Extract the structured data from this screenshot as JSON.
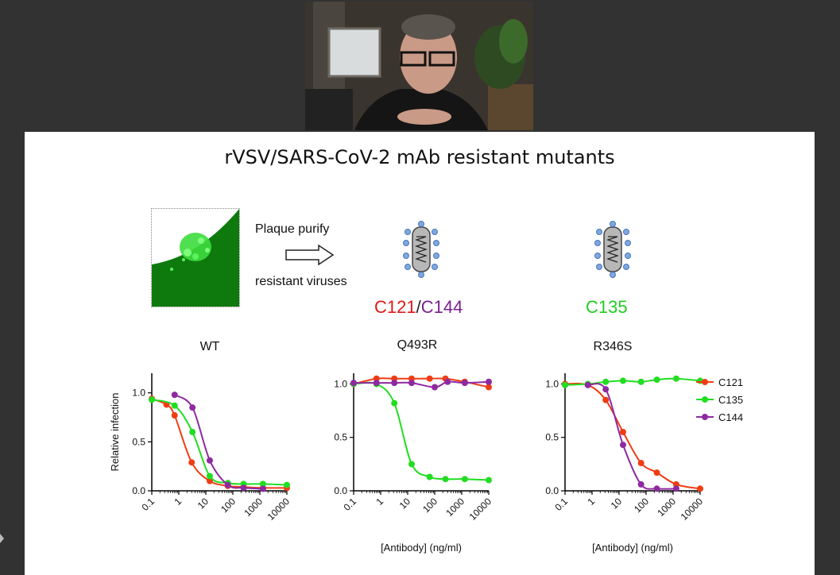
{
  "slide": {
    "title": "rVSV/SARS-CoV-2 mAb resistant mutants",
    "flow_top": "Plaque purify",
    "flow_bottom": "resistant viruses",
    "virus1_label_a": "C121",
    "virus1_sep": "/",
    "virus1_label_b": "C144",
    "virus2_label": "C135"
  },
  "colors": {
    "C121": "#f03c14",
    "C135": "#22dd22",
    "C144": "#8e2aa0",
    "virus_blue": "#7ea8e0"
  },
  "chart_data": [
    {
      "type": "line",
      "title": "WT",
      "ylabel": "Relative infection",
      "xlabel": "",
      "xscale": "log",
      "xlim": [
        0.1,
        10000
      ],
      "ylim": [
        0,
        1.2
      ],
      "xticks": [
        "0.1",
        "1",
        "10",
        "100",
        "1000",
        "10000"
      ],
      "yticks": [
        "0.0",
        "0.5",
        "1.0"
      ],
      "series": [
        {
          "name": "C121",
          "x": [
            0.1,
            0.35,
            0.7,
            3,
            14,
            65,
            250,
            1300,
            10000
          ],
          "y": [
            0.94,
            0.88,
            0.77,
            0.29,
            0.1,
            0.05,
            0.04,
            0.03,
            0.03
          ]
        },
        {
          "name": "C135",
          "x": [
            0.1,
            0.7,
            3.2,
            14,
            65,
            250,
            1300,
            10000
          ],
          "y": [
            0.93,
            0.87,
            0.6,
            0.15,
            0.08,
            0.07,
            0.07,
            0.06
          ]
        },
        {
          "name": "C144",
          "x": [
            0.7,
            3.2,
            14,
            65,
            250,
            1300
          ],
          "y": [
            0.98,
            0.85,
            0.31,
            0.06,
            0.03,
            0.02
          ]
        }
      ]
    },
    {
      "type": "line",
      "title": "Q493R",
      "ylabel": "",
      "xlabel": "[Antibody] (ng/ml)",
      "xscale": "log",
      "xlim": [
        0.1,
        10000
      ],
      "ylim": [
        0,
        1.1
      ],
      "xticks": [
        "0.1",
        "1",
        "10",
        "100",
        "1000",
        "10000"
      ],
      "yticks": [
        "0.0",
        "0.5",
        "1.0"
      ],
      "series": [
        {
          "name": "C121",
          "x": [
            0.1,
            0.7,
            3.2,
            14,
            65,
            250,
            1300,
            10000
          ],
          "y": [
            1.0,
            1.05,
            1.05,
            1.05,
            1.05,
            1.05,
            1.02,
            0.97
          ]
        },
        {
          "name": "C135",
          "x": [
            0.1,
            0.7,
            3.2,
            14,
            65,
            250,
            1300,
            10000
          ],
          "y": [
            1.0,
            1.0,
            0.82,
            0.25,
            0.13,
            0.11,
            0.11,
            0.1
          ]
        },
        {
          "name": "C144",
          "x": [
            0.1,
            0.7,
            3.2,
            14,
            100,
            300,
            1300,
            10000
          ],
          "y": [
            1.01,
            1.01,
            1.01,
            1.01,
            0.97,
            1.02,
            1.01,
            1.02
          ]
        }
      ]
    },
    {
      "type": "line",
      "title": "R346S",
      "ylabel": "",
      "xlabel": "[Antibody] (ng/ml)",
      "xscale": "log",
      "xlim": [
        0.1,
        10000
      ],
      "ylim": [
        0,
        1.1
      ],
      "xticks": [
        "0.1",
        "1",
        "10",
        "100",
        "1000",
        "10000"
      ],
      "yticks": [
        "0.0",
        "0.5",
        "1.0"
      ],
      "series": [
        {
          "name": "C121",
          "x": [
            0.1,
            0.7,
            3.2,
            14,
            65,
            250,
            1300,
            10000
          ],
          "y": [
            1.0,
            0.99,
            0.85,
            0.55,
            0.26,
            0.17,
            0.06,
            0.02
          ]
        },
        {
          "name": "C135",
          "x": [
            0.1,
            0.7,
            3.2,
            14,
            65,
            250,
            1300,
            10000
          ],
          "y": [
            0.99,
            1.0,
            1.02,
            1.03,
            1.02,
            1.04,
            1.05,
            1.03
          ]
        },
        {
          "name": "C144",
          "x": [
            0.7,
            3.2,
            14,
            65,
            250,
            1300
          ],
          "y": [
            0.99,
            0.95,
            0.43,
            0.06,
            0.02,
            0.02
          ]
        }
      ]
    }
  ],
  "legend": [
    {
      "name": "C121",
      "color": "#f03c14"
    },
    {
      "name": "C135",
      "color": "#22dd22"
    },
    {
      "name": "C144",
      "color": "#8e2aa0"
    }
  ]
}
